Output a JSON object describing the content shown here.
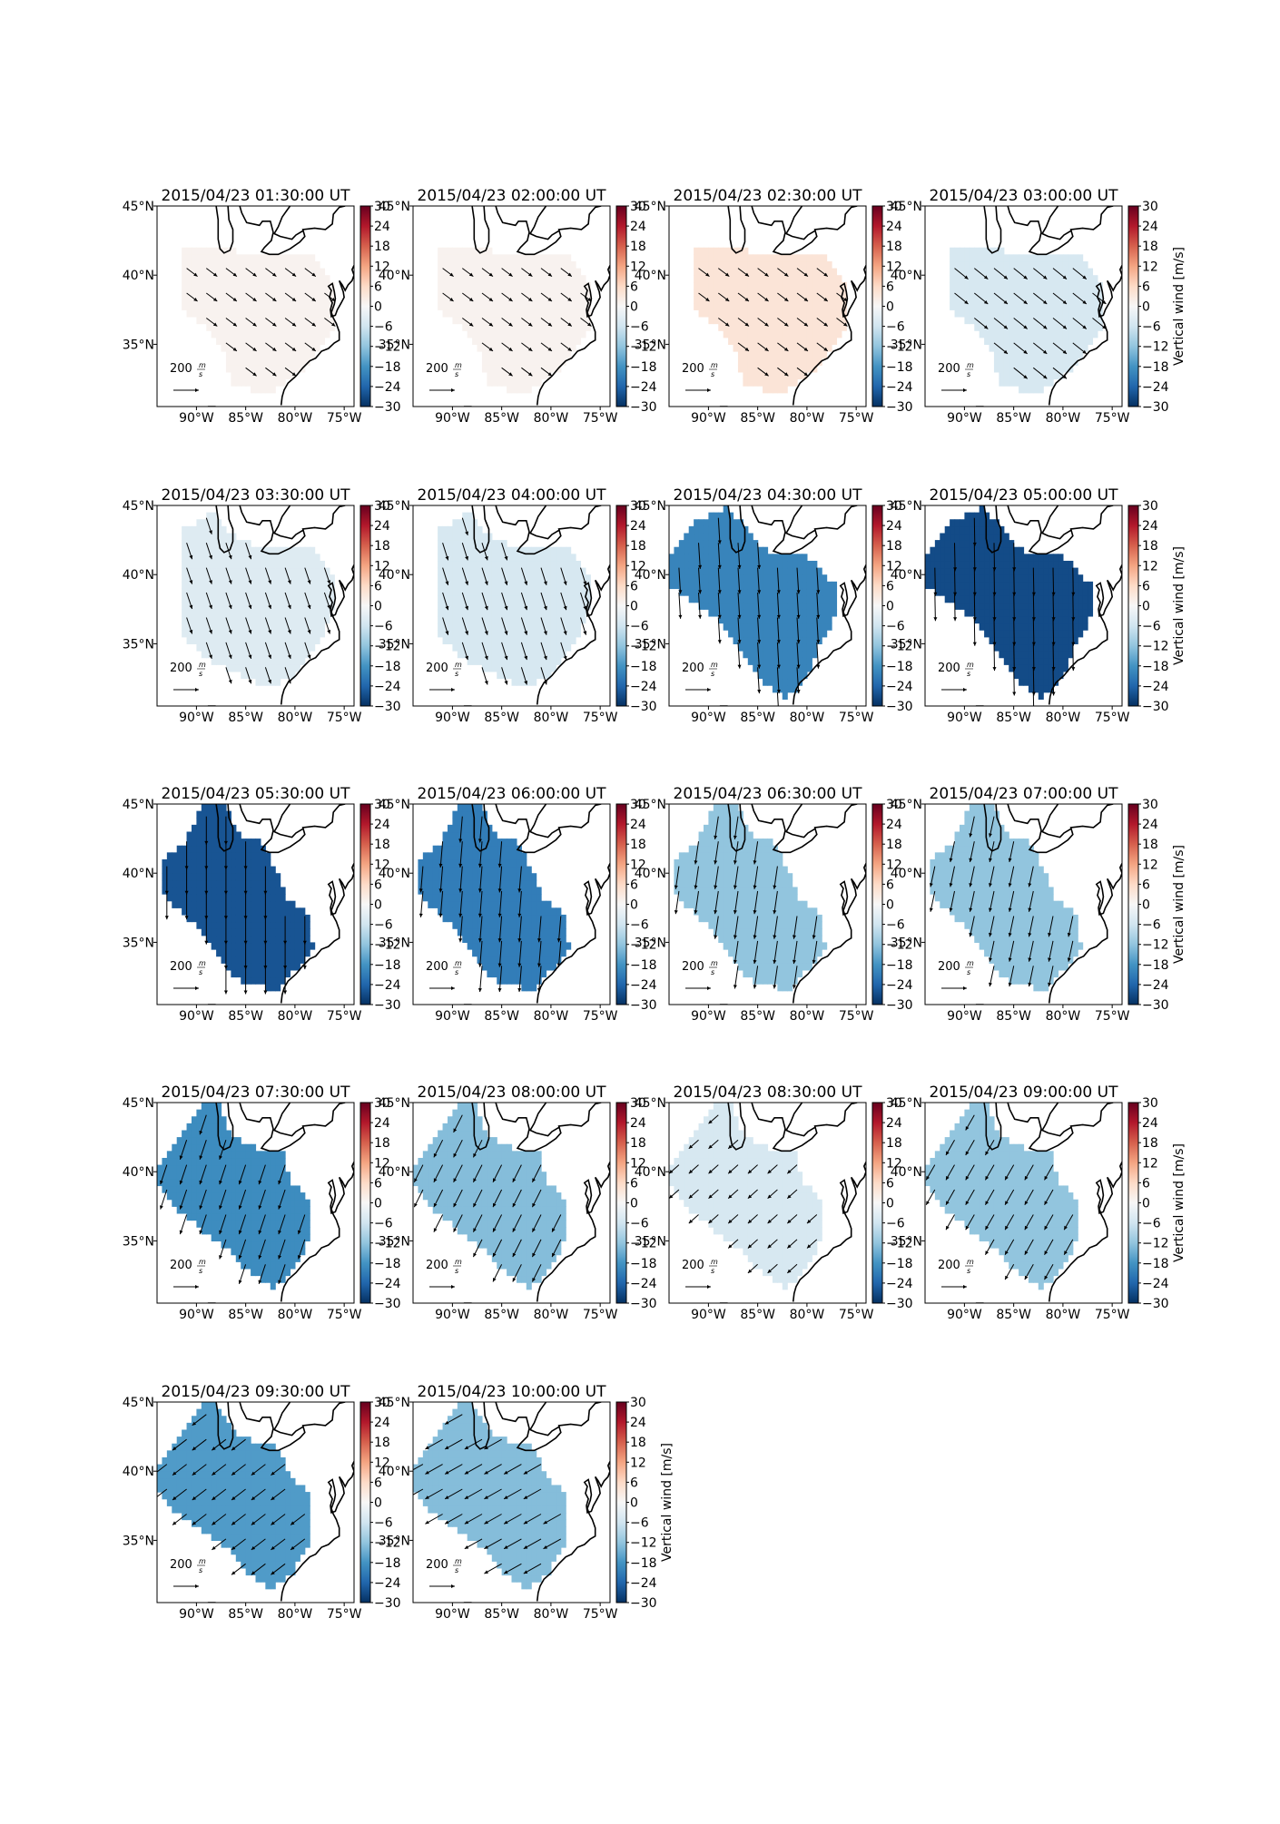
{
  "chart_data": {
    "type": "heatmap",
    "description_of_panels": "map panels of vertical wind with wind vectors",
    "lat_ticks": [
      "45°N",
      "40°N",
      "35°N"
    ],
    "lon_ticks": [
      "90°W",
      "85°W",
      "80°W",
      "75°W"
    ],
    "lon_range": [
      -94,
      -74
    ],
    "lat_range": [
      30.5,
      45
    ],
    "colorbar": {
      "ticks": [
        "30",
        "24",
        "18",
        "12",
        "6",
        "0",
        "−6",
        "−12",
        "−18",
        "−24",
        "−30"
      ],
      "range": [
        -30,
        30
      ],
      "colormap": "RdBu_r",
      "label": "Vertical wind [m/s]"
    },
    "vector_key": {
      "label": "200",
      "unit_num": "m",
      "unit_den": "s",
      "value": 200
    },
    "panels": [
      {
        "title": "2015/04/23 01:30:00 UT",
        "value": 1,
        "mask": "A",
        "wind": [
          20,
          15
        ],
        "show_label": false
      },
      {
        "title": "2015/04/23 02:00:00 UT",
        "value": 1,
        "mask": "A",
        "wind": [
          20,
          15
        ],
        "show_label": false
      },
      {
        "title": "2015/04/23 02:30:00 UT",
        "value": 4,
        "mask": "A",
        "wind": [
          20,
          15
        ],
        "show_label": false
      },
      {
        "title": "2015/04/23 03:00:00 UT",
        "value": -5,
        "mask": "A",
        "wind": [
          25,
          20
        ],
        "show_label": true
      },
      {
        "title": "2015/04/23 03:30:00 UT",
        "value": -4,
        "mask": "B",
        "wind": [
          10,
          30
        ],
        "show_label": false
      },
      {
        "title": "2015/04/23 04:00:00 UT",
        "value": -5,
        "mask": "B",
        "wind": [
          10,
          32
        ],
        "show_label": false
      },
      {
        "title": "2015/04/23 04:30:00 UT",
        "value": -20,
        "mask": "C",
        "wind": [
          3,
          48
        ],
        "show_label": false
      },
      {
        "title": "2015/04/23 05:00:00 UT",
        "value": -27,
        "mask": "C",
        "wind": [
          1,
          52
        ],
        "show_label": true
      },
      {
        "title": "2015/04/23 05:30:00 UT",
        "value": -26,
        "mask": "D",
        "wind": [
          0,
          52
        ],
        "show_label": false
      },
      {
        "title": "2015/04/23 06:00:00 UT",
        "value": -21,
        "mask": "D",
        "wind": [
          -4,
          48
        ],
        "show_label": false
      },
      {
        "title": "2015/04/23 06:30:00 UT",
        "value": -12,
        "mask": "D",
        "wind": [
          -6,
          42
        ],
        "show_label": false
      },
      {
        "title": "2015/04/23 07:00:00 UT",
        "value": -12,
        "mask": "D",
        "wind": [
          -8,
          38
        ],
        "show_label": true
      },
      {
        "title": "2015/04/23 07:30:00 UT",
        "value": -19,
        "mask": "E",
        "wind": [
          -12,
          36
        ],
        "show_label": false
      },
      {
        "title": "2015/04/23 08:00:00 UT",
        "value": -13,
        "mask": "E",
        "wind": [
          -16,
          32
        ],
        "show_label": false
      },
      {
        "title": "2015/04/23 08:30:00 UT",
        "value": -5,
        "mask": "E",
        "wind": [
          -18,
          16
        ],
        "show_label": false
      },
      {
        "title": "2015/04/23 09:00:00 UT",
        "value": -12,
        "mask": "E",
        "wind": [
          -16,
          28
        ],
        "show_label": true
      },
      {
        "title": "2015/04/23 09:30:00 UT",
        "value": -17,
        "mask": "F",
        "wind": [
          -26,
          20
        ],
        "show_label": false
      },
      {
        "title": "2015/04/23 10:00:00 UT",
        "value": -13,
        "mask": "F",
        "wind": [
          -32,
          18
        ],
        "show_label": true
      }
    ]
  }
}
